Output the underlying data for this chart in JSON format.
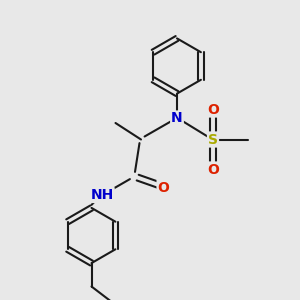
{
  "background_color": "#e8e8e8",
  "bond_color": "#1a1a1a",
  "bond_width": 1.5,
  "atom_labels": {
    "N1": {
      "color": "#0000cc",
      "fontsize": 10
    },
    "O1": {
      "color": "#dd2200",
      "fontsize": 10
    },
    "O2": {
      "color": "#dd2200",
      "fontsize": 10
    },
    "O3": {
      "color": "#dd2200",
      "fontsize": 10
    },
    "S": {
      "color": "#aaaa00",
      "fontsize": 10
    },
    "NH": {
      "color": "#0000cc",
      "fontsize": 10
    },
    "H": {
      "color": "#448899",
      "fontsize": 9
    }
  },
  "figsize": [
    3.0,
    3.0
  ],
  "dpi": 100,
  "xlim": [
    0,
    10
  ],
  "ylim": [
    0,
    10
  ]
}
